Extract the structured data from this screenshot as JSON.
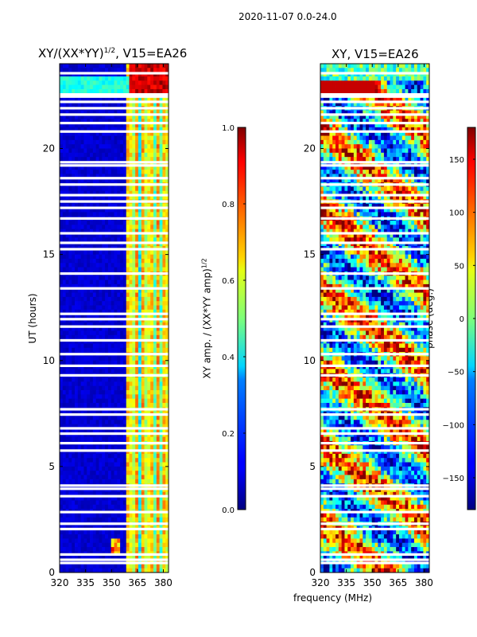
{
  "suptitle": "2020-11-07 0.0-24.0",
  "chart_data": [
    {
      "type": "heatmap",
      "title": "XY/(XX*YY)^{1/2}, V15=EA26",
      "title_main": "XY/(XX*YY)",
      "title_sup": "1/2",
      "title_rest": ", V15=EA26",
      "xlabel": "",
      "ylabel": "UT (hours)",
      "xlim": [
        320,
        383
      ],
      "ylim": [
        0,
        24
      ],
      "xticks": [
        320,
        335,
        350,
        365,
        380
      ],
      "yticks": [
        0,
        5,
        10,
        15,
        20
      ],
      "colormap": "jet",
      "colorbar": {
        "label": "XY amp. / (XX*YY amp)^{1/2}",
        "label_main": "XY amp. / (XX*YY amp)",
        "label_sup": "1/2",
        "range": [
          0.0,
          1.0
        ],
        "ticks": [
          "0.0",
          "0.2",
          "0.4",
          "0.6",
          "0.8",
          "1.0"
        ],
        "tick_values": [
          0.0,
          0.2,
          0.4,
          0.6,
          0.8,
          1.0
        ]
      }
    },
    {
      "type": "heatmap",
      "title": "XY, V15=EA26",
      "xlabel": "frequency (MHz)",
      "ylabel": "",
      "xlim": [
        320,
        383
      ],
      "ylim": [
        0,
        24
      ],
      "xticks": [
        320,
        335,
        350,
        365,
        380
      ],
      "yticks": [
        0,
        5,
        10,
        15,
        20
      ],
      "colormap": "jet",
      "colorbar": {
        "label": "phase (deg.)",
        "range": [
          -180,
          180
        ],
        "ticks": [
          "−150",
          "−100",
          "−50",
          "0",
          "50",
          "100",
          "150"
        ],
        "tick_values": [
          -150,
          -100,
          -50,
          0,
          50,
          100,
          150
        ]
      }
    }
  ]
}
